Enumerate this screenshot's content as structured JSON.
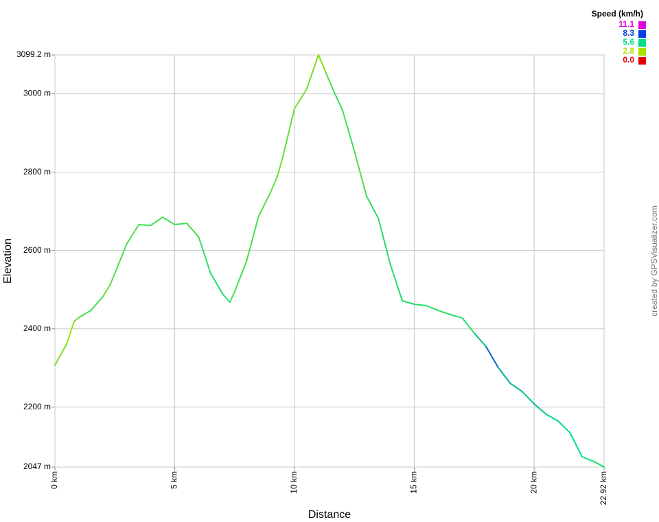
{
  "chart_data": {
    "type": "line",
    "x_label": "Distance",
    "y_label": "Elevation",
    "credit": "created by GPSVisualizer.com",
    "x": [
      0,
      0.5,
      0.8,
      1.0,
      1.5,
      2.0,
      2.3,
      2.5,
      3.0,
      3.5,
      4.0,
      4.5,
      5.0,
      5.5,
      6.0,
      6.5,
      7.0,
      7.3,
      7.5,
      8.0,
      8.5,
      9.0,
      9.3,
      9.5,
      10.0,
      10.5,
      10.8,
      11.0,
      11.3,
      11.6,
      12.0,
      12.5,
      13.0,
      13.5,
      14.0,
      14.5,
      15.0,
      15.5,
      16.0,
      16.5,
      17.0,
      17.5,
      18.0,
      18.5,
      19.0,
      19.5,
      20.0,
      20.5,
      21.0,
      21.5,
      22.0,
      22.5,
      22.92
    ],
    "series": [
      {
        "name": "Elevation",
        "values": [
          2306.5,
          2362.6,
          2418.7,
          2429,
          2446.8,
          2482,
          2511.7,
          2541.5,
          2616.9,
          2666,
          2664,
          2685,
          2666,
          2669.5,
          2634.4,
          2541.5,
          2488.9,
          2467.9,
          2494.2,
          2573.1,
          2687,
          2748.4,
          2792.3,
          2836.1,
          2962.4,
          3011.5,
          3064.1,
          3099.2,
          3055.4,
          3011.5,
          2958.9,
          2853.7,
          2739.7,
          2681.8,
          2564.3,
          2471.3,
          2462.6,
          2459.1,
          2446.8,
          2436.3,
          2427.5,
          2389,
          2353.9,
          2301.3,
          2260.9,
          2239.9,
          2208.3,
          2182,
          2164.5,
          2134.6,
          2073.3,
          2061,
          2047
        ],
        "speed": [
          3.5,
          3.0,
          3.8,
          4.5,
          4.5,
          3.8,
          4.2,
          4.5,
          4.4,
          4.6,
          4.5,
          4.4,
          4.6,
          4.5,
          4.8,
          5.2,
          5.0,
          4.6,
          4.5,
          4.4,
          4.2,
          4.0,
          3.8,
          4.0,
          3.6,
          3.8,
          3.4,
          3.4,
          4.4,
          4.8,
          4.6,
          4.4,
          4.8,
          5.0,
          5.2,
          5.2,
          5.0,
          5.0,
          4.9,
          4.9,
          5.0,
          6.3,
          7.6,
          6.4,
          6.2,
          6.1,
          6.2,
          5.8,
          5.7,
          5.6,
          5.5,
          5.4,
          5.4
        ]
      }
    ],
    "xlim": [
      0,
      22.92
    ],
    "xticks": [
      {
        "value": 0,
        "label": "0 km"
      },
      {
        "value": 5,
        "label": "5 km"
      },
      {
        "value": 10,
        "label": "10 km"
      },
      {
        "value": 15,
        "label": "15 km"
      },
      {
        "value": 20,
        "label": "20 km"
      },
      {
        "value": 22.92,
        "label": "22.92 km"
      }
    ],
    "ylim": [
      2047,
      3099.2
    ],
    "yticks": [
      {
        "value": 2047,
        "label": "2047 m"
      },
      {
        "value": 2200,
        "label": "2200 m"
      },
      {
        "value": 2400,
        "label": "2400 m"
      },
      {
        "value": 2600,
        "label": "2600 m"
      },
      {
        "value": 2800,
        "label": "2800 m"
      },
      {
        "value": 3000,
        "label": "3000 m"
      },
      {
        "value": 3099.2,
        "label": "3099.2 m"
      }
    ],
    "grid": true,
    "legend": {
      "title": "Speed (km/h)",
      "position": "top-right",
      "entries": [
        {
          "value": 11.1,
          "color": "#e000e0"
        },
        {
          "value": 8.3,
          "color": "#0040e0"
        },
        {
          "value": 5.6,
          "color": "#00e080"
        },
        {
          "value": 2.8,
          "color": "#a8e000"
        },
        {
          "value": 0,
          "label": "0.0",
          "color": "#e00000"
        }
      ]
    }
  }
}
